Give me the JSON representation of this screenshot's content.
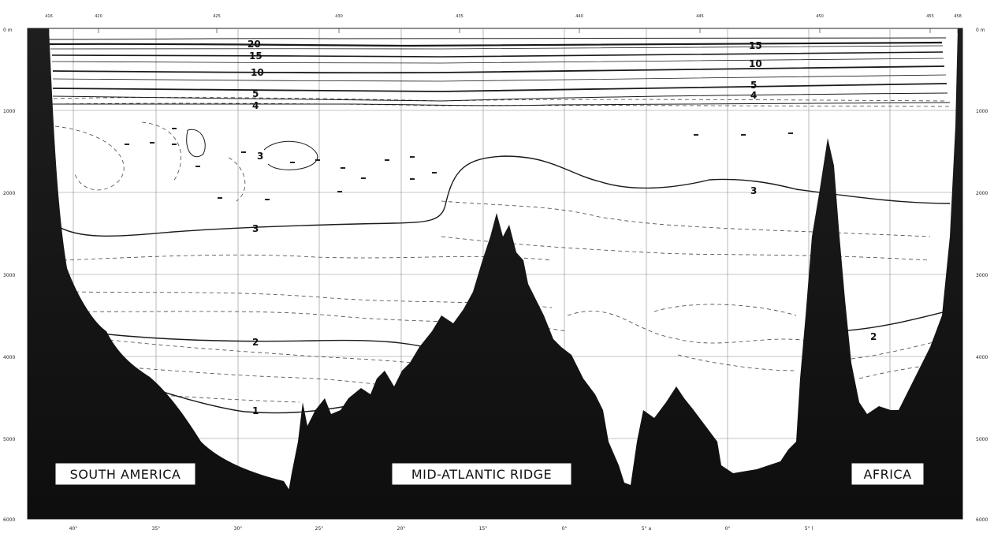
{
  "section": {
    "depth_labels": [
      "0 m",
      "1000",
      "2000",
      "3000",
      "4000",
      "5000",
      "6000"
    ],
    "lon_labels": [
      "40°",
      "35°",
      "30°",
      "25°",
      "20°",
      "15°",
      "0°",
      "5° a",
      "0°",
      "5° l"
    ],
    "station_labels": [
      "416",
      "420",
      "425",
      "430",
      "435",
      "440",
      "445",
      "450",
      "455",
      "458"
    ],
    "region_labels": {
      "south_america": "SOUTH AMERICA",
      "ridge": "MID-ATLANTIC RIDGE",
      "africa": "AFRICA"
    },
    "isotherm_labels": [
      "20",
      "15",
      "10",
      "5",
      "4",
      "3",
      "3",
      "3",
      "2",
      "1",
      "15",
      "10",
      "5",
      "4",
      "2"
    ],
    "colors": {
      "background": "#ffffff",
      "terrain": "#141414",
      "grid": "#888888",
      "isotherm": "#1a1a1a"
    }
  }
}
